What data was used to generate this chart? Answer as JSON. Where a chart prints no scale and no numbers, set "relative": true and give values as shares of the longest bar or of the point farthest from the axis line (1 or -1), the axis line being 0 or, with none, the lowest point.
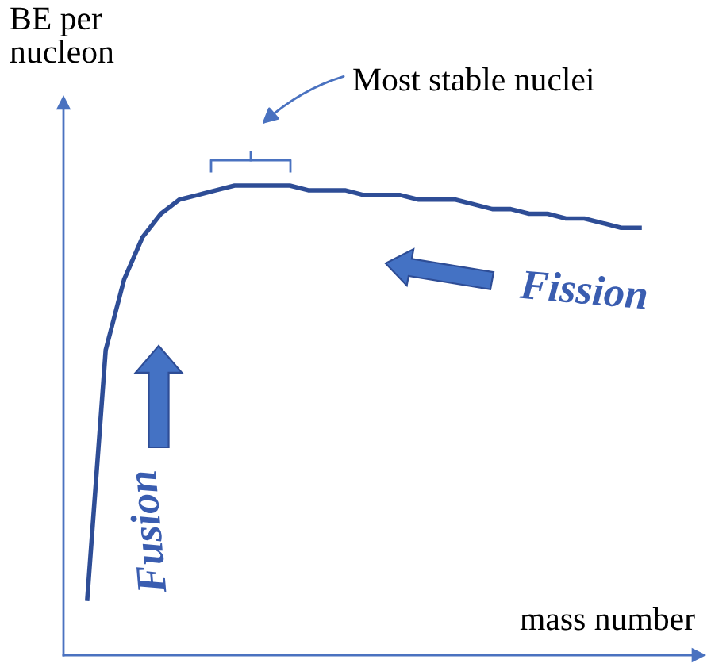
{
  "chart_data": {
    "type": "line",
    "relative": true,
    "xlabel": "mass number",
    "ylabel": "BE per\nnucleon",
    "categories": [
      null,
      null,
      null,
      null,
      null,
      null,
      null,
      null,
      null,
      null,
      null,
      null,
      null,
      null,
      null,
      null,
      null,
      null,
      null,
      null,
      null,
      null,
      null,
      null,
      null,
      null,
      null,
      null,
      null,
      null,
      null
    ],
    "series": [
      {
        "color": "#2e4d96",
        "values": [
          0.12,
          0.65,
          0.8,
          0.89,
          0.94,
          0.97,
          0.98,
          0.99,
          1.0,
          1.0,
          1.0,
          1.0,
          0.99,
          0.99,
          0.99,
          0.98,
          0.98,
          0.98,
          0.97,
          0.97,
          0.97,
          0.96,
          0.95,
          0.95,
          0.94,
          0.94,
          0.93,
          0.93,
          0.92,
          0.91,
          0.91
        ]
      }
    ],
    "annotations": [
      "Most stable nuclei",
      "Fission",
      "Fusion"
    ],
    "legend": false
  }
}
